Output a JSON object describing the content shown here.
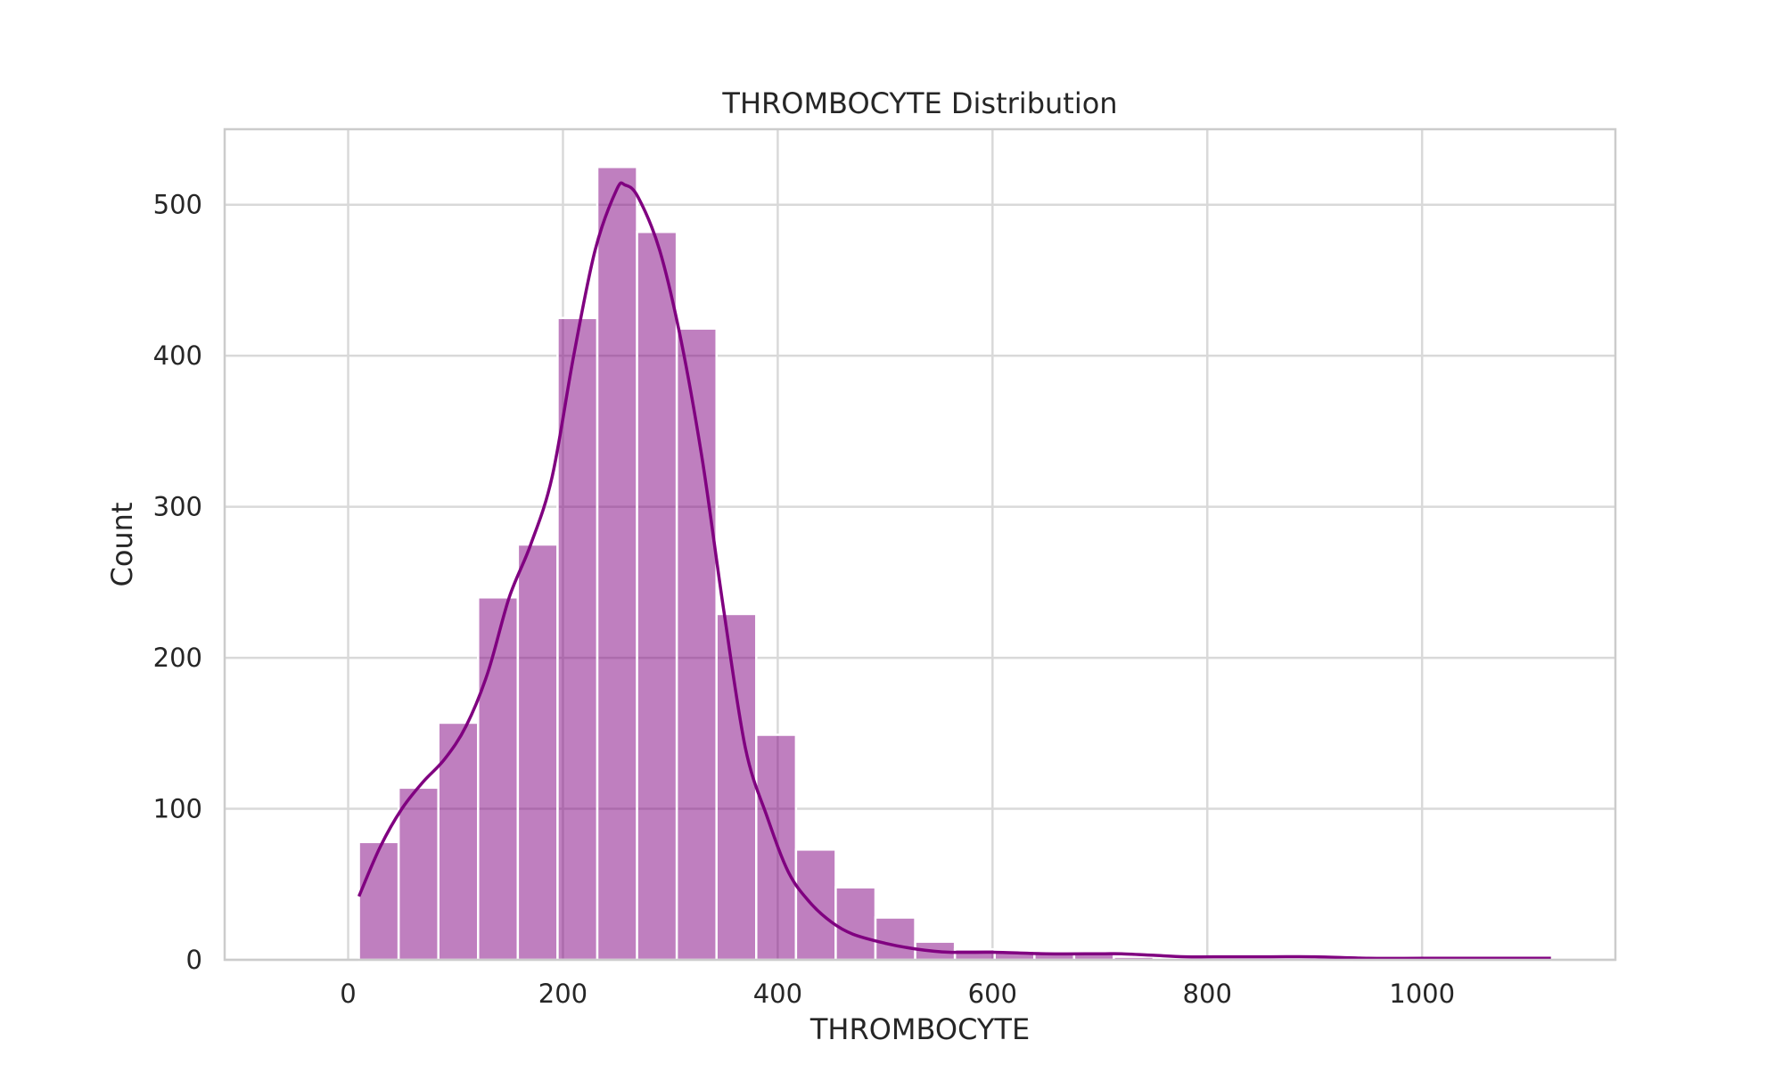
{
  "chart_data": {
    "type": "bar",
    "title": "THROMBOCYTE Distribution",
    "xlabel": "THROMBOCYTE",
    "ylabel": "Count",
    "xlim": [
      -115,
      1180
    ],
    "ylim": [
      0,
      550
    ],
    "xticks": [
      0,
      200,
      400,
      600,
      800,
      1000
    ],
    "yticks": [
      0,
      100,
      200,
      300,
      400,
      500
    ],
    "grid": true,
    "bar_color": "#800080",
    "bar_opacity": 0.5,
    "kde_color": "#800080",
    "bin_edges": [
      10,
      47,
      84,
      121,
      158,
      195,
      232,
      269,
      306,
      343,
      380,
      417,
      454,
      491,
      528,
      565,
      602,
      639,
      676,
      713,
      750,
      787,
      824,
      861,
      898,
      935,
      972,
      1009,
      1046,
      1083,
      1120
    ],
    "counts": [
      78,
      114,
      157,
      240,
      275,
      425,
      525,
      482,
      418,
      229,
      149,
      73,
      48,
      28,
      12,
      7,
      6,
      5,
      4,
      2,
      1,
      1,
      1,
      1,
      1,
      0,
      0,
      0,
      0,
      1
    ],
    "kde": {
      "x": [
        10,
        30,
        50,
        70,
        90,
        110,
        130,
        150,
        170,
        190,
        210,
        230,
        250,
        258,
        270,
        290,
        310,
        330,
        350,
        370,
        390,
        410,
        430,
        450,
        470,
        500,
        530,
        560,
        600,
        650,
        700,
        720,
        750,
        780,
        820,
        860,
        900,
        950,
        1000,
        1050,
        1120
      ],
      "y": [
        42,
        75,
        100,
        118,
        133,
        155,
        190,
        240,
        275,
        320,
        400,
        470,
        510,
        513,
        505,
        470,
        410,
        330,
        230,
        140,
        95,
        58,
        38,
        25,
        17,
        11,
        7,
        5,
        5,
        4,
        4,
        4,
        3,
        2,
        2,
        2,
        2,
        1,
        1,
        1,
        1
      ]
    }
  }
}
